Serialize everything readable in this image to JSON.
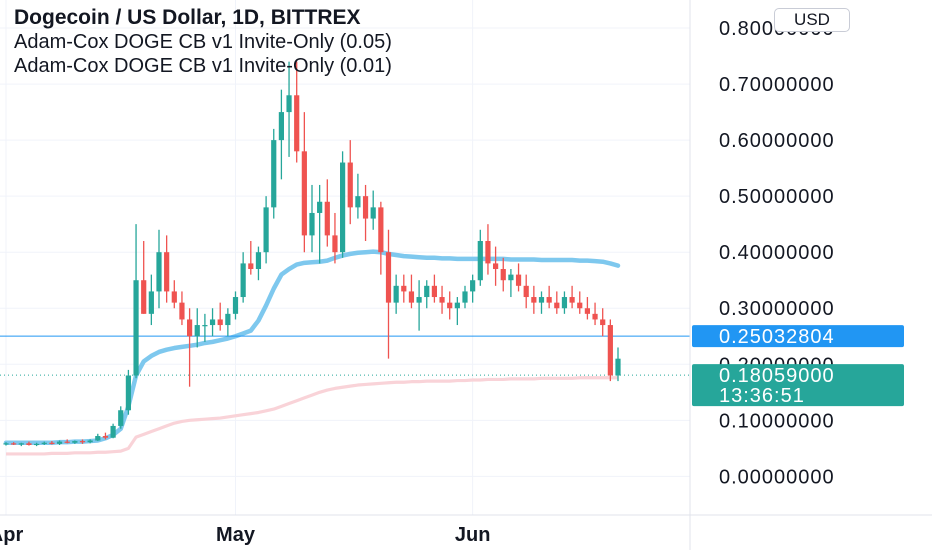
{
  "header": {
    "symbol_title": "Dogecoin / US Dollar, 1D, BITTREX",
    "indicators": [
      "Adam-Cox DOGE CB v1 Invite-Only (0.05)",
      "Adam-Cox DOGE CB v1 Invite-Only (0.01)"
    ]
  },
  "currency_button": "USD",
  "colors": {
    "up": "#26a69a",
    "down": "#ef5350",
    "band_upper": "#7ec8ee",
    "band_lower": "#f9d3d8",
    "price_line": "#2196f3",
    "last_price": "#26a69a",
    "grid": "#f0f3fa"
  },
  "chart_data": {
    "type": "candlestick",
    "title": "Dogecoin / US Dollar, 1D, BITTREX",
    "y_axis": {
      "range": [
        -0.06,
        0.85
      ],
      "ticks": [
        "0.00000000",
        "0.10000000",
        "0.20000000",
        "0.30000000",
        "0.40000000",
        "0.50000000",
        "0.60000000",
        "0.70000000",
        "0.80000000"
      ],
      "tick_values": [
        0,
        0.1,
        0.2,
        0.3,
        0.4,
        0.5,
        0.6,
        0.7,
        0.8
      ]
    },
    "x_axis": {
      "labels": [
        "Apr",
        "May",
        "Jun"
      ],
      "label_index": [
        0,
        30,
        61
      ]
    },
    "grid": true,
    "price_labels": [
      {
        "value": 0.25032804,
        "text": "0.25032804",
        "color": "#2196f3"
      },
      {
        "value": 0.18059,
        "text": "0.18059000",
        "sub": "13:36:51",
        "color": "#26a69a"
      }
    ],
    "candles": [
      [
        0.058,
        0.061,
        0.055,
        0.059
      ],
      [
        0.059,
        0.061,
        0.056,
        0.057
      ],
      [
        0.057,
        0.06,
        0.054,
        0.059
      ],
      [
        0.059,
        0.062,
        0.055,
        0.056
      ],
      [
        0.056,
        0.06,
        0.054,
        0.058
      ],
      [
        0.058,
        0.062,
        0.056,
        0.06
      ],
      [
        0.06,
        0.063,
        0.057,
        0.058
      ],
      [
        0.058,
        0.064,
        0.056,
        0.062
      ],
      [
        0.062,
        0.066,
        0.059,
        0.06
      ],
      [
        0.06,
        0.064,
        0.058,
        0.063
      ],
      [
        0.063,
        0.066,
        0.058,
        0.061
      ],
      [
        0.061,
        0.066,
        0.059,
        0.064
      ],
      [
        0.064,
        0.076,
        0.063,
        0.072
      ],
      [
        0.072,
        0.078,
        0.066,
        0.069
      ],
      [
        0.069,
        0.094,
        0.068,
        0.09
      ],
      [
        0.09,
        0.125,
        0.085,
        0.118
      ],
      [
        0.118,
        0.19,
        0.11,
        0.18
      ],
      [
        0.18,
        0.45,
        0.175,
        0.35
      ],
      [
        0.35,
        0.42,
        0.29,
        0.29
      ],
      [
        0.29,
        0.36,
        0.27,
        0.33
      ],
      [
        0.33,
        0.44,
        0.3,
        0.4
      ],
      [
        0.4,
        0.43,
        0.31,
        0.33
      ],
      [
        0.33,
        0.35,
        0.3,
        0.31
      ],
      [
        0.31,
        0.33,
        0.27,
        0.28
      ],
      [
        0.28,
        0.3,
        0.16,
        0.25
      ],
      [
        0.25,
        0.3,
        0.23,
        0.27
      ],
      [
        0.27,
        0.29,
        0.24,
        0.27
      ],
      [
        0.27,
        0.3,
        0.25,
        0.28
      ],
      [
        0.28,
        0.31,
        0.26,
        0.27
      ],
      [
        0.27,
        0.3,
        0.25,
        0.29
      ],
      [
        0.29,
        0.33,
        0.28,
        0.32
      ],
      [
        0.32,
        0.4,
        0.31,
        0.38
      ],
      [
        0.38,
        0.42,
        0.36,
        0.37
      ],
      [
        0.37,
        0.41,
        0.35,
        0.4
      ],
      [
        0.4,
        0.5,
        0.38,
        0.48
      ],
      [
        0.48,
        0.62,
        0.46,
        0.6
      ],
      [
        0.6,
        0.69,
        0.53,
        0.65
      ],
      [
        0.65,
        0.74,
        0.57,
        0.68
      ],
      [
        0.68,
        0.74,
        0.56,
        0.58
      ],
      [
        0.58,
        0.65,
        0.4,
        0.43
      ],
      [
        0.43,
        0.52,
        0.4,
        0.47
      ],
      [
        0.47,
        0.52,
        0.38,
        0.49
      ],
      [
        0.49,
        0.53,
        0.41,
        0.43
      ],
      [
        0.43,
        0.47,
        0.38,
        0.4
      ],
      [
        0.4,
        0.58,
        0.39,
        0.56
      ],
      [
        0.56,
        0.6,
        0.45,
        0.48
      ],
      [
        0.48,
        0.54,
        0.46,
        0.5
      ],
      [
        0.5,
        0.52,
        0.42,
        0.46
      ],
      [
        0.46,
        0.51,
        0.44,
        0.48
      ],
      [
        0.48,
        0.49,
        0.36,
        0.4
      ],
      [
        0.4,
        0.44,
        0.21,
        0.31
      ],
      [
        0.31,
        0.36,
        0.29,
        0.34
      ],
      [
        0.34,
        0.36,
        0.31,
        0.33
      ],
      [
        0.33,
        0.36,
        0.3,
        0.31
      ],
      [
        0.31,
        0.35,
        0.26,
        0.32
      ],
      [
        0.32,
        0.35,
        0.3,
        0.34
      ],
      [
        0.34,
        0.36,
        0.31,
        0.32
      ],
      [
        0.32,
        0.34,
        0.29,
        0.31
      ],
      [
        0.31,
        0.33,
        0.28,
        0.3
      ],
      [
        0.3,
        0.32,
        0.27,
        0.31
      ],
      [
        0.31,
        0.34,
        0.3,
        0.33
      ],
      [
        0.33,
        0.36,
        0.31,
        0.35
      ],
      [
        0.35,
        0.44,
        0.34,
        0.42
      ],
      [
        0.42,
        0.45,
        0.36,
        0.38
      ],
      [
        0.38,
        0.41,
        0.34,
        0.37
      ],
      [
        0.37,
        0.39,
        0.33,
        0.35
      ],
      [
        0.35,
        0.37,
        0.32,
        0.36
      ],
      [
        0.36,
        0.38,
        0.33,
        0.34
      ],
      [
        0.34,
        0.36,
        0.3,
        0.32
      ],
      [
        0.32,
        0.34,
        0.29,
        0.31
      ],
      [
        0.31,
        0.33,
        0.29,
        0.32
      ],
      [
        0.32,
        0.34,
        0.3,
        0.31
      ],
      [
        0.31,
        0.33,
        0.29,
        0.3
      ],
      [
        0.3,
        0.33,
        0.29,
        0.32
      ],
      [
        0.32,
        0.34,
        0.3,
        0.31
      ],
      [
        0.31,
        0.33,
        0.29,
        0.3
      ],
      [
        0.3,
        0.32,
        0.28,
        0.29
      ],
      [
        0.29,
        0.31,
        0.27,
        0.28
      ],
      [
        0.28,
        0.3,
        0.25,
        0.27
      ],
      [
        0.27,
        0.28,
        0.17,
        0.18
      ],
      [
        0.18,
        0.23,
        0.17,
        0.21
      ]
    ],
    "band_upper": [
      0.06,
      0.06,
      0.06,
      0.06,
      0.06,
      0.06,
      0.06,
      0.061,
      0.061,
      0.062,
      0.062,
      0.063,
      0.064,
      0.068,
      0.074,
      0.085,
      0.125,
      0.18,
      0.205,
      0.215,
      0.222,
      0.226,
      0.229,
      0.231,
      0.233,
      0.235,
      0.238,
      0.24,
      0.243,
      0.246,
      0.25,
      0.255,
      0.26,
      0.278,
      0.305,
      0.335,
      0.36,
      0.37,
      0.378,
      0.381,
      0.382,
      0.383,
      0.385,
      0.39,
      0.394,
      0.397,
      0.399,
      0.4,
      0.401,
      0.4,
      0.397,
      0.395,
      0.393,
      0.392,
      0.391,
      0.39,
      0.39,
      0.389,
      0.389,
      0.388,
      0.388,
      0.388,
      0.388,
      0.388,
      0.388,
      0.388,
      0.387,
      0.387,
      0.387,
      0.387,
      0.386,
      0.386,
      0.386,
      0.386,
      0.386,
      0.385,
      0.385,
      0.384,
      0.383,
      0.38,
      0.376
    ],
    "band_lower": [
      0.04,
      0.04,
      0.04,
      0.04,
      0.04,
      0.04,
      0.041,
      0.041,
      0.041,
      0.042,
      0.042,
      0.042,
      0.043,
      0.043,
      0.044,
      0.045,
      0.05,
      0.07,
      0.075,
      0.08,
      0.085,
      0.09,
      0.095,
      0.098,
      0.1,
      0.101,
      0.102,
      0.103,
      0.104,
      0.106,
      0.108,
      0.11,
      0.112,
      0.114,
      0.117,
      0.12,
      0.125,
      0.13,
      0.135,
      0.14,
      0.145,
      0.15,
      0.154,
      0.157,
      0.159,
      0.161,
      0.163,
      0.164,
      0.165,
      0.166,
      0.167,
      0.168,
      0.168,
      0.169,
      0.169,
      0.17,
      0.17,
      0.17,
      0.17,
      0.171,
      0.171,
      0.172,
      0.172,
      0.173,
      0.173,
      0.173,
      0.174,
      0.174,
      0.174,
      0.174,
      0.175,
      0.175,
      0.175,
      0.175,
      0.175,
      0.176,
      0.176,
      0.176,
      0.176,
      0.176,
      0.176
    ]
  }
}
